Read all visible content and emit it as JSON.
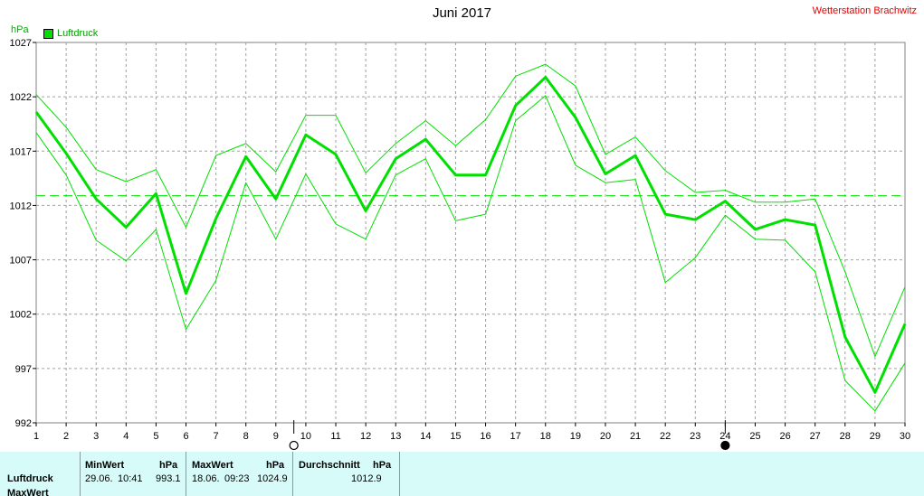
{
  "title": "Juni 2017",
  "station": "Wetterstation Brachwitz",
  "unit": "hPa",
  "legend": "Luftdruck",
  "colors": {
    "line": "#00e000",
    "grid": "#a0a0a0",
    "red": "#e00000",
    "table_bg": "#d6fbf9"
  },
  "moon_icons": [
    {
      "day": 9.6,
      "name": "full-moon-icon"
    },
    {
      "day": 24,
      "name": "new-moon-icon"
    }
  ],
  "stats": {
    "row_label": "Luftdruck",
    "row_label_2": "MaxWert",
    "min": {
      "header": "MinWert",
      "unit": "hPa",
      "date": "29.06.",
      "time": "10:41",
      "value": "993.1"
    },
    "max": {
      "header": "MaxWert",
      "unit": "hPa",
      "date": "18.06.",
      "time": "09:23",
      "value": "1024.9"
    },
    "avg": {
      "header": "Durchschnitt",
      "unit": "hPa",
      "value": "1012.9"
    }
  },
  "chart_data": {
    "type": "line",
    "x": [
      1,
      2,
      3,
      4,
      5,
      6,
      7,
      8,
      9,
      10,
      11,
      12,
      13,
      14,
      15,
      16,
      17,
      18,
      19,
      20,
      21,
      22,
      23,
      24,
      25,
      26,
      27,
      28,
      29,
      30
    ],
    "xlim": [
      1,
      30
    ],
    "ylim": [
      992,
      1027
    ],
    "yticks": [
      992,
      997,
      1002,
      1007,
      1012,
      1017,
      1022,
      1027
    ],
    "average": 1012.9,
    "grid": true,
    "legend_position": "top-left",
    "series": [
      {
        "name": "Luftdruck",
        "values": [
          1020.6,
          1016.8,
          1012.6,
          1010,
          1013.1,
          1003.9,
          1010.8,
          1016.5,
          1012.6,
          1018.5,
          1016.7,
          1011.5,
          1016.3,
          1018.1,
          1014.8,
          1014.8,
          1021.2,
          1023.8,
          1020.1,
          1014.9,
          1016.6,
          1011.2,
          1010.7,
          1012.4,
          1009.8,
          1010.7,
          1010.2,
          999.9,
          994.8,
          1001.1
        ]
      },
      {
        "values": [
          1022.2,
          1019.2,
          1015.3,
          1014.2,
          1015.3,
          1010,
          1016.6,
          1017.7,
          1015.1,
          1020.3,
          1020.3,
          1015,
          1017.7,
          1019.8,
          1017.5,
          1019.9,
          1023.9,
          1025,
          1023,
          1016.7,
          1018.3,
          1015.2,
          1013.2,
          1013.4,
          1012.3,
          1012.3,
          1012.6,
          1005.9,
          998.1,
          1004.5
        ]
      },
      {
        "values": [
          1018.7,
          1014.8,
          1008.8,
          1006.9,
          1009.8,
          1000.6,
          1005.1,
          1014.1,
          1008.9,
          1014.9,
          1010.3,
          1008.9,
          1014.8,
          1016.3,
          1010.6,
          1011.2,
          1019.8,
          1022.1,
          1015.7,
          1014.1,
          1014.4,
          1004.9,
          1007.2,
          1011.1,
          1008.9,
          1008.8,
          1005.9,
          995.9,
          993.1,
          997.5
        ]
      }
    ]
  }
}
